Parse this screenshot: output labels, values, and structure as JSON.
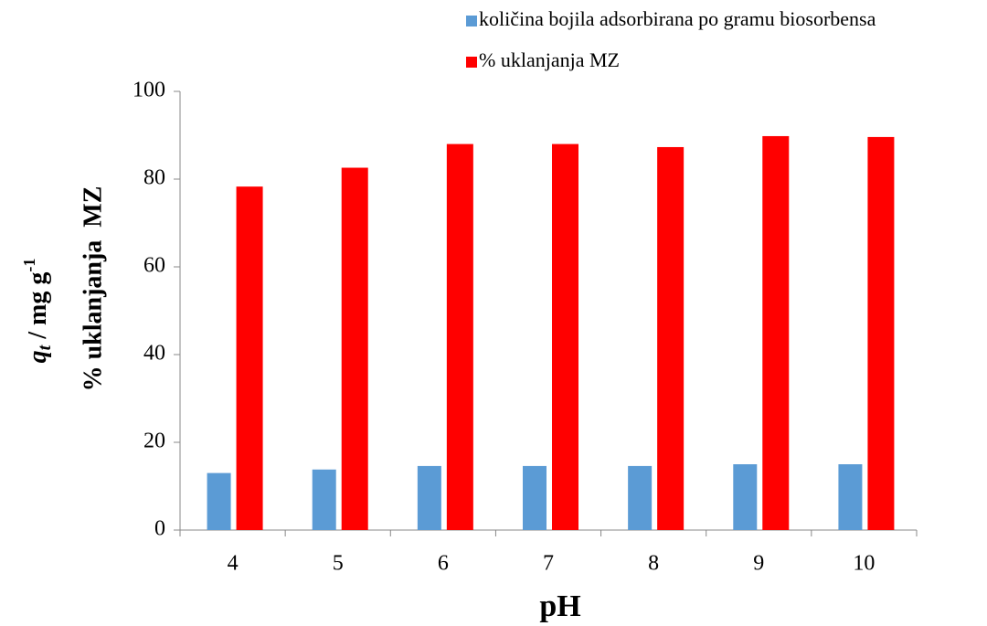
{
  "chart_data": {
    "type": "bar",
    "x_label": "pH",
    "y_label": [
      "q",
      "t",
      " / mg g",
      "-1"
    ],
    "y_label_2": "% uklanjanja  MZ",
    "categories": [
      "4",
      "5",
      "6",
      "7",
      "8",
      "9",
      "10"
    ],
    "series": [
      {
        "name": "količina bojila adsorbirana po gramu biosorbensa",
        "color": "#5b9bd5",
        "values": [
          13,
          13.8,
          14.6,
          14.6,
          14.6,
          15,
          15
        ]
      },
      {
        "name": "% uklanjanja MZ",
        "color": "#ff0000",
        "values": [
          78.3,
          82.6,
          88,
          88,
          87.3,
          89.8,
          89.6
        ]
      }
    ],
    "ylim": [
      0,
      100
    ],
    "yticks": [
      0,
      20,
      40,
      60,
      80,
      100
    ],
    "legend": "top-right",
    "grid": false
  }
}
